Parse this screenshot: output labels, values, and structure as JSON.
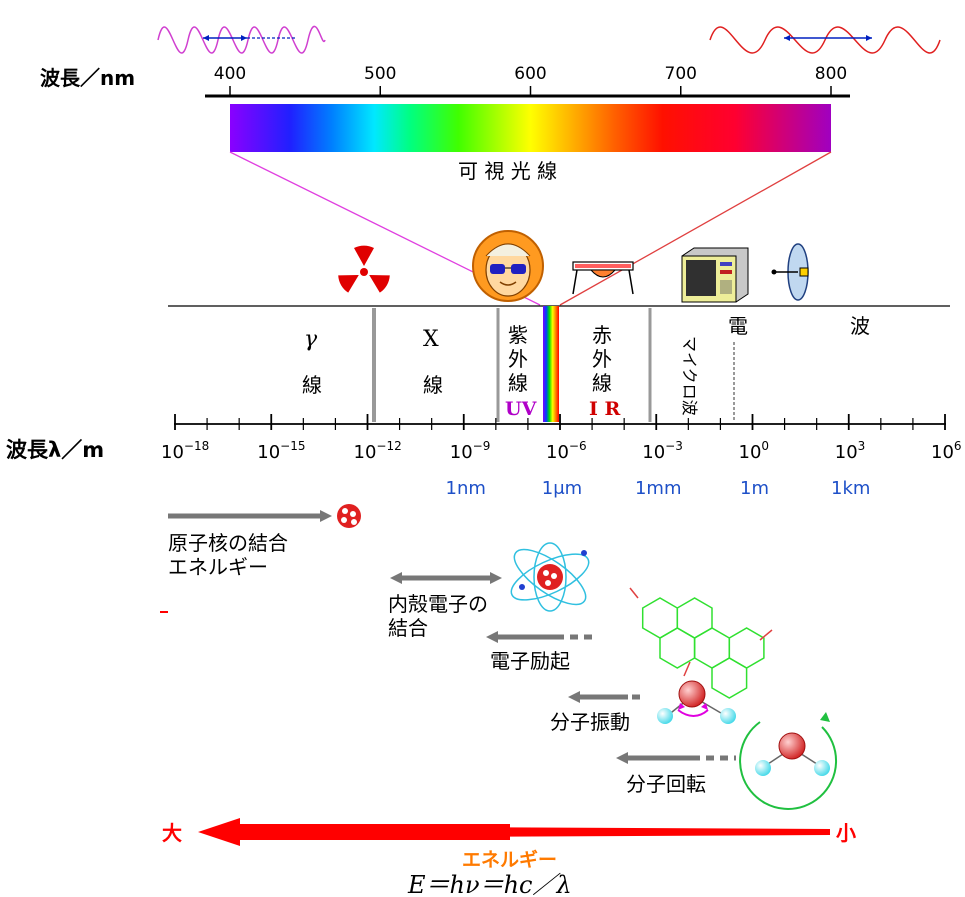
{
  "nm_axis": {
    "label": "波長／nm",
    "ticks": [
      "400",
      "500",
      "600",
      "700",
      "800"
    ],
    "visible_label": "可 視 光 線"
  },
  "regions": {
    "gamma": [
      "γ",
      "線"
    ],
    "xray": [
      "X",
      "線"
    ],
    "uv": {
      "label": [
        "紫",
        "外",
        "線"
      ],
      "abbr": "UV"
    },
    "ir": {
      "label": [
        "赤",
        "外",
        "線"
      ],
      "abbr": "I R"
    },
    "micro": "マイクロ波",
    "radio": [
      "電",
      "波"
    ]
  },
  "m_axis": {
    "label": "波長λ／m",
    "ticks": [
      {
        "base": "10",
        "exp": "−18"
      },
      {
        "base": "10",
        "exp": "−15"
      },
      {
        "base": "10",
        "exp": "−12"
      },
      {
        "base": "10",
        "exp": "−9"
      },
      {
        "base": "10",
        "exp": "−6"
      },
      {
        "base": "10",
        "exp": "−3"
      },
      {
        "base": "10",
        "exp": "0"
      },
      {
        "base": "10",
        "exp": "3"
      },
      {
        "base": "10",
        "exp": "6"
      }
    ],
    "units": [
      "1nm",
      "1μm",
      "1mm",
      "1m",
      "1km"
    ]
  },
  "transitions": {
    "nuclear": [
      "原子核の結合",
      "エネルギー"
    ],
    "inner": [
      "内殻電子の",
      "結合"
    ],
    "electronic": "電子励起",
    "vibration": "分子振動",
    "rotation": "分子回転"
  },
  "energy": {
    "big": "大",
    "small": "小",
    "label": "エネルギー",
    "formula": "E＝hν＝hc／λ"
  },
  "colors": {
    "arrow_gray": "#777777",
    "energy_red": "#ff0000",
    "energy_orange": "#ff7a00",
    "unit_blue": "#1e50c8",
    "uv_purple": "#b000c8",
    "ir_red": "#d00000"
  }
}
